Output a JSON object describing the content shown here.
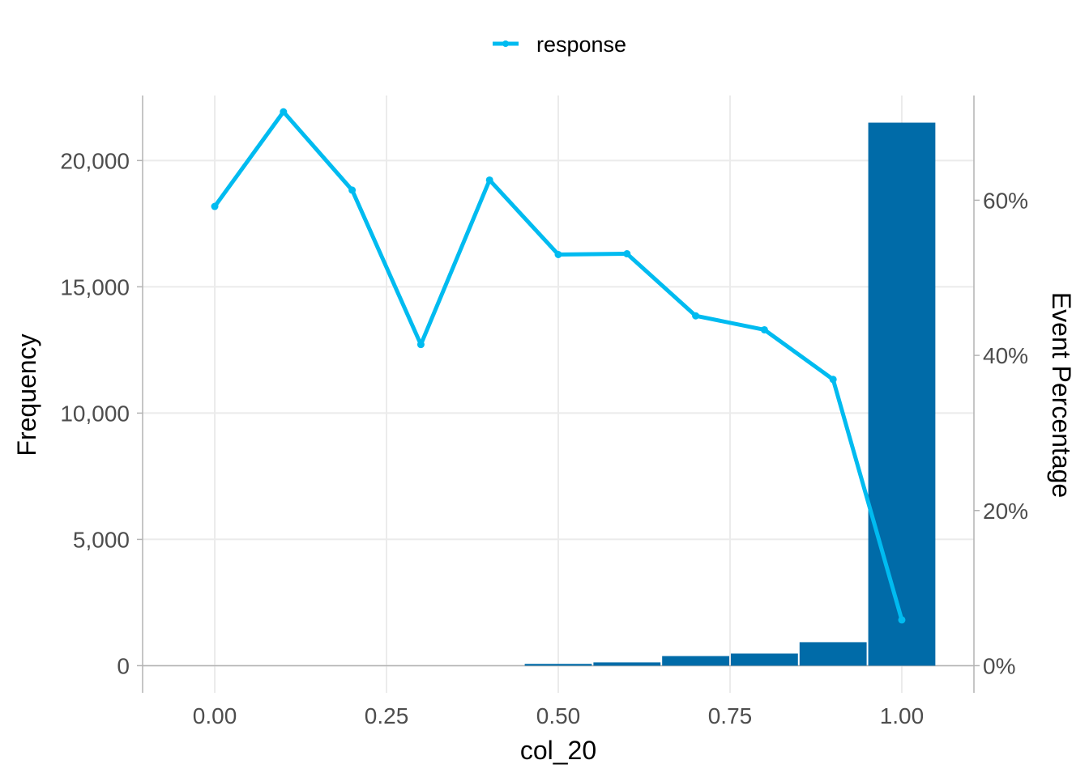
{
  "chart_data": {
    "type": "bar",
    "x": [
      0.0,
      0.1,
      0.2,
      0.3,
      0.4,
      0.5,
      0.6,
      0.7,
      0.8,
      0.9,
      1.0
    ],
    "frequency": [
      0,
      0,
      0,
      0,
      0,
      70,
      130,
      380,
      480,
      930,
      21500
    ],
    "series": [
      {
        "name": "response",
        "type": "line",
        "axis": "right",
        "values": [
          59.2,
          71.4,
          61.3,
          41.4,
          62.6,
          53.0,
          53.1,
          45.1,
          43.3,
          36.9,
          5.9
        ]
      }
    ],
    "xlabel": "col_20",
    "ylabel": "Frequency",
    "y2label": "Event Percentage",
    "x_ticks": [
      0.0,
      0.25,
      0.5,
      0.75,
      1.0
    ],
    "x_tick_labels": [
      "0.00",
      "0.25",
      "0.50",
      "0.75",
      "1.00"
    ],
    "y_ticks": [
      0,
      5000,
      10000,
      15000,
      20000
    ],
    "y_tick_labels": [
      "0",
      "5,000",
      "10,000",
      "15,000",
      "20,000"
    ],
    "y2_ticks": [
      0,
      20,
      40,
      60
    ],
    "y2_tick_labels": [
      "0%",
      "20%",
      "40%",
      "60%"
    ],
    "xlim": [
      -0.105,
      1.105
    ],
    "ylim": [
      -1075,
      22575
    ],
    "y2lim": [
      -3.5,
      73.5
    ],
    "bar_width": 0.1,
    "grid": true,
    "legend_position": "top",
    "colors": {
      "bars": "#006BA8",
      "line": "#00BBF0",
      "grid": "#ebebeb",
      "axis": "#b3b3b3"
    }
  }
}
